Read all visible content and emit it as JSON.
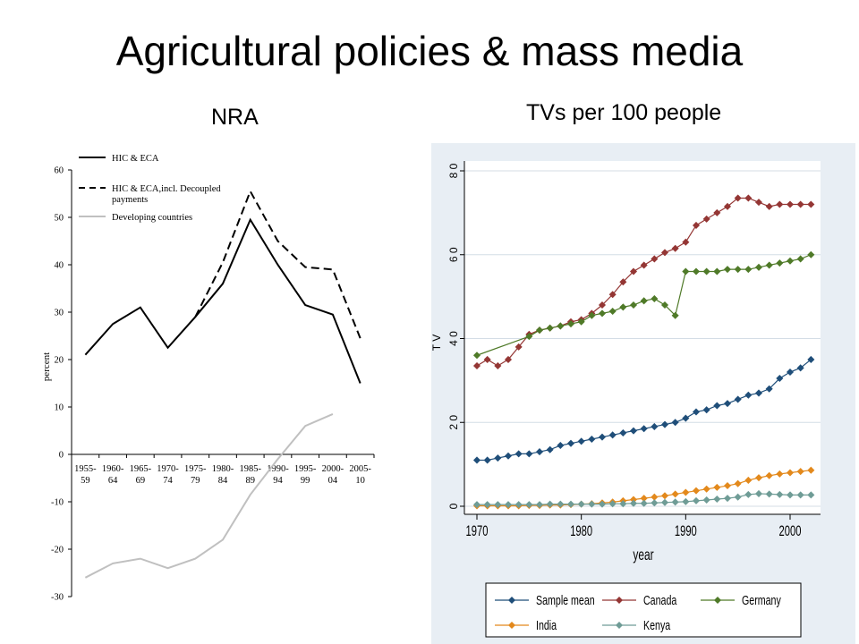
{
  "slide": {
    "title": "Agricultural policies & mass media",
    "left_subtitle": "NRA",
    "right_subtitle": "TVs per 100 people"
  },
  "chart_data": [
    {
      "type": "line",
      "title": "NRA",
      "ylabel": "percent",
      "xlabel": "",
      "ylim": [
        -30,
        60
      ],
      "yticks": [
        -30,
        -20,
        -10,
        0,
        10,
        20,
        30,
        40,
        50,
        60
      ],
      "categories": [
        [
          "1955-",
          "59"
        ],
        [
          "1960-",
          "64"
        ],
        [
          "1965-",
          "69"
        ],
        [
          "1970-",
          "74"
        ],
        [
          "1975-",
          "79"
        ],
        [
          "1980-",
          "84"
        ],
        [
          "1985-",
          "89"
        ],
        [
          "1990-",
          "94"
        ],
        [
          "1995-",
          "99"
        ],
        [
          "2000-",
          "04"
        ],
        [
          "2005-",
          "10"
        ]
      ],
      "legend_position": "top-left",
      "series": [
        {
          "name": "HIC & ECA",
          "style": "solid",
          "color": "#000000",
          "values": [
            21,
            27.5,
            31,
            22.5,
            29,
            36,
            49.5,
            40,
            31.5,
            29.5,
            15
          ]
        },
        {
          "name": "HIC & ECA,incl. Decoupled payments",
          "legend_lines": [
            "HIC & ECA,incl. Decoupled",
            "payments"
          ],
          "style": "dashed",
          "color": "#000000",
          "values": [
            null,
            null,
            null,
            null,
            29,
            40.5,
            55.5,
            45,
            39.5,
            39,
            24.5
          ]
        },
        {
          "name": "Developing countries",
          "style": "solid",
          "color": "#c0c0c0",
          "values": [
            -26,
            -23,
            -22,
            -24,
            -22,
            -18,
            -8.5,
            -1,
            6,
            8.5,
            null
          ]
        }
      ]
    },
    {
      "type": "line",
      "title": "TVs per 100 people",
      "xlabel": "year",
      "ylabel": "T V",
      "xlim": [
        1970,
        2002
      ],
      "ylim": [
        0,
        80
      ],
      "xticks": [
        1970,
        1980,
        1990,
        2000
      ],
      "yticks": [
        0,
        20,
        40,
        60,
        80
      ],
      "ytick_labels": [
        "0",
        "2 0",
        "4 0",
        "6 0",
        "8 0"
      ],
      "grid": true,
      "legend_position": "bottom",
      "background": "#e8eef4",
      "series": [
        {
          "name": "Sample mean",
          "color": "#1f4e79",
          "marker": "diamond",
          "x": [
            1970,
            1971,
            1972,
            1973,
            1974,
            1975,
            1976,
            1977,
            1978,
            1979,
            1980,
            1981,
            1982,
            1983,
            1984,
            1985,
            1986,
            1987,
            1988,
            1989,
            1990,
            1991,
            1992,
            1993,
            1994,
            1995,
            1996,
            1997,
            1998,
            1999,
            2000,
            2001,
            2002
          ],
          "y": [
            11,
            11,
            11.5,
            12,
            12.5,
            12.5,
            13,
            13.5,
            14.5,
            15,
            15.5,
            16,
            16.5,
            17,
            17.5,
            18,
            18.5,
            19,
            19.5,
            20,
            21,
            22.5,
            23,
            24,
            24.5,
            25.5,
            26.5,
            27,
            28,
            30.5,
            32,
            33,
            35
          ]
        },
        {
          "name": "Canada",
          "color": "#943634",
          "marker": "diamond",
          "x": [
            1970,
            1971,
            1972,
            1973,
            1974,
            1975,
            1976,
            1977,
            1978,
            1979,
            1980,
            1981,
            1982,
            1983,
            1984,
            1985,
            1986,
            1987,
            1988,
            1989,
            1990,
            1991,
            1992,
            1993,
            1994,
            1995,
            1996,
            1997,
            1998,
            1999,
            2000,
            2001,
            2002
          ],
          "y": [
            33.5,
            35,
            33.5,
            35,
            38,
            41,
            42,
            42.5,
            43,
            44,
            44.5,
            46,
            48,
            50.5,
            53.5,
            56,
            57.5,
            59,
            60.5,
            61.5,
            63,
            67,
            68.5,
            70,
            71.5,
            73.5,
            73.5,
            72.5,
            71.5,
            72,
            72,
            72,
            72
          ]
        },
        {
          "name": "Germany",
          "color": "#4f7a28",
          "marker": "diamond",
          "x": [
            1970,
            1975,
            1976,
            1977,
            1978,
            1979,
            1980,
            1981,
            1982,
            1983,
            1984,
            1985,
            1986,
            1987,
            1988,
            1989,
            1990,
            1991,
            1992,
            1993,
            1994,
            1995,
            1996,
            1997,
            1998,
            1999,
            2000,
            2001,
            2002
          ],
          "y": [
            36,
            40.5,
            42,
            42.5,
            43,
            43.5,
            44,
            45.5,
            46,
            46.5,
            47.5,
            48,
            49,
            49.5,
            48,
            45.5,
            56,
            56,
            56,
            56,
            56.5,
            56.5,
            56.5,
            57,
            57.5,
            58,
            58.5,
            59,
            60
          ]
        },
        {
          "name": "India",
          "color": "#e3891c",
          "marker": "diamond",
          "x": [
            1970,
            1971,
            1972,
            1973,
            1974,
            1975,
            1976,
            1977,
            1978,
            1979,
            1980,
            1981,
            1982,
            1983,
            1984,
            1985,
            1986,
            1987,
            1988,
            1989,
            1990,
            1991,
            1992,
            1993,
            1994,
            1995,
            1996,
            1997,
            1998,
            1999,
            2000,
            2001,
            2002
          ],
          "y": [
            0.1,
            0.1,
            0.1,
            0.1,
            0.1,
            0.2,
            0.2,
            0.3,
            0.3,
            0.4,
            0.5,
            0.6,
            0.8,
            1,
            1.3,
            1.6,
            1.9,
            2.2,
            2.5,
            2.9,
            3.3,
            3.7,
            4.1,
            4.5,
            4.9,
            5.4,
            6.2,
            6.8,
            7.3,
            7.7,
            8,
            8.3,
            8.6
          ]
        },
        {
          "name": "Kenya",
          "color": "#6f9c96",
          "marker": "diamond",
          "x": [
            1970,
            1971,
            1972,
            1973,
            1974,
            1975,
            1976,
            1977,
            1978,
            1979,
            1980,
            1981,
            1982,
            1983,
            1984,
            1985,
            1986,
            1987,
            1988,
            1989,
            1990,
            1991,
            1992,
            1993,
            1994,
            1995,
            1996,
            1997,
            1998,
            1999,
            2000,
            2001,
            2002
          ],
          "y": [
            0.4,
            0.4,
            0.4,
            0.4,
            0.4,
            0.4,
            0.4,
            0.5,
            0.5,
            0.5,
            0.5,
            0.5,
            0.5,
            0.6,
            0.6,
            0.7,
            0.7,
            0.8,
            0.9,
            1,
            1.1,
            1.3,
            1.5,
            1.7,
            1.9,
            2.2,
            2.8,
            3,
            2.9,
            2.8,
            2.7,
            2.7,
            2.7
          ]
        }
      ]
    }
  ]
}
